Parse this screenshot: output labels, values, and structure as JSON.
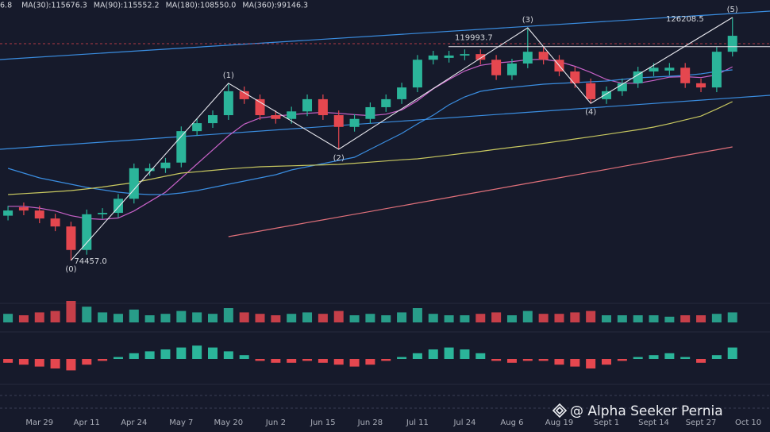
{
  "chart_data": {
    "type": "candlestick",
    "legend_fragment": "6.8",
    "legend_fragment_color": "#e8c840",
    "categories": [
      null,
      null,
      "Mar 29",
      null,
      null,
      "Apr 11",
      null,
      null,
      "Apr 24",
      null,
      null,
      "May 7",
      null,
      null,
      "May 20",
      null,
      null,
      "Jun 2",
      null,
      null,
      "Jun 15",
      null,
      null,
      "Jun 28",
      null,
      null,
      "Jul 11",
      null,
      null,
      "Jul 24",
      null,
      null,
      "Aug 6",
      null,
      null,
      "Aug 19",
      null,
      null,
      "Sept 1",
      null,
      null,
      "Sept 14",
      null,
      null,
      "Sept 27",
      null,
      null,
      "Oct 10"
    ],
    "open": [
      84000,
      85800,
      85100,
      83400,
      81700,
      76700,
      84300,
      84600,
      87600,
      93500,
      94100,
      95300,
      102000,
      103700,
      105400,
      110500,
      108800,
      105400,
      104600,
      106200,
      108800,
      105400,
      102900,
      104600,
      107100,
      108800,
      111300,
      117200,
      117600,
      118100,
      118400,
      117200,
      113900,
      116400,
      118900,
      117200,
      114700,
      112200,
      108800,
      110500,
      112200,
      114700,
      114900,
      115500,
      112200,
      111300,
      118900,
      null
    ],
    "high": [
      86100,
      86800,
      86100,
      84400,
      82700,
      85300,
      85600,
      88600,
      95100,
      95100,
      96300,
      103000,
      104700,
      106400,
      112200,
      111500,
      109800,
      106400,
      107200,
      109800,
      109800,
      106400,
      105600,
      108100,
      109800,
      112300,
      118200,
      119100,
      119100,
      119400,
      119400,
      118200,
      117400,
      124000,
      119900,
      118200,
      115700,
      113200,
      111500,
      113200,
      115700,
      116500,
      116500,
      116500,
      113200,
      119900,
      126208.5,
      null
    ],
    "low": [
      83000,
      84100,
      82400,
      80700,
      74457,
      75700,
      83300,
      83600,
      86600,
      92500,
      93100,
      94300,
      101000,
      102700,
      104400,
      107800,
      104400,
      103600,
      103600,
      105200,
      104400,
      98130,
      101900,
      103600,
      106100,
      107800,
      110300,
      116200,
      116600,
      117100,
      116200,
      112900,
      112900,
      115400,
      116200,
      113700,
      111200,
      107900,
      107800,
      109500,
      111200,
      113700,
      113900,
      111200,
      110300,
      110300,
      117900,
      null
    ],
    "close": [
      85100,
      85100,
      83400,
      81700,
      76700,
      84300,
      84600,
      87600,
      94100,
      94100,
      95300,
      102000,
      103700,
      105400,
      110500,
      108800,
      105400,
      104600,
      106200,
      108800,
      105400,
      102900,
      104600,
      107100,
      108800,
      111300,
      117200,
      118100,
      118100,
      118400,
      117200,
      113900,
      116400,
      118900,
      117200,
      114700,
      112200,
      108800,
      110500,
      112200,
      114700,
      115500,
      115500,
      112200,
      111300,
      118900,
      122300,
      null
    ],
    "up_color": "#2bb59a",
    "down_color": "#e5474f",
    "ylim": [
      65670,
      129920
    ],
    "series": [
      {
        "name": "MA(30):115676.3",
        "color": "#c862c8",
        "values": [
          86000,
          86000,
          85600,
          85000,
          84000,
          83400,
          83200,
          83500,
          85000,
          87000,
          89000,
          92000,
          95000,
          98000,
          101000,
          103500,
          104800,
          105200,
          105500,
          105800,
          106000,
          105800,
          105500,
          105300,
          105600,
          106500,
          108500,
          111000,
          113000,
          114800,
          116000,
          116500,
          116800,
          117200,
          117300,
          116800,
          115800,
          114500,
          113000,
          112200,
          112200,
          112800,
          113500,
          113600,
          113400,
          114000,
          115700,
          null
        ]
      },
      {
        "name": "MA(90):115552.2",
        "color": "#3a8de0",
        "values": [
          94070,
          93060,
          92040,
          91370,
          90690,
          90010,
          89510,
          89000,
          88660,
          88490,
          88490,
          88830,
          89340,
          90010,
          90690,
          91370,
          92040,
          92720,
          93730,
          94410,
          95090,
          95760,
          96440,
          98130,
          99820,
          101510,
          103540,
          105400,
          107600,
          109290,
          110480,
          110980,
          111320,
          111660,
          112000,
          112170,
          112340,
          112500,
          112670,
          113010,
          113350,
          113520,
          113690,
          113860,
          114200,
          114700,
          115040,
          null
        ]
      },
      {
        "name": "MA(180):108550.0",
        "color": "#c8c860",
        "values": [
          88490,
          88700,
          88900,
          89100,
          89340,
          89700,
          90100,
          90600,
          91030,
          91700,
          92400,
          93060,
          93350,
          93650,
          93950,
          94200,
          94410,
          94520,
          94620,
          94720,
          94820,
          94920,
          95150,
          95400,
          95650,
          95900,
          96100,
          96500,
          96900,
          97300,
          97700,
          98130,
          98550,
          98950,
          99400,
          99850,
          100330,
          100800,
          101300,
          101800,
          102300,
          102870,
          103600,
          104400,
          105200,
          106700,
          108280,
          null
        ]
      },
      {
        "name": "MA(360):99146.3",
        "color": "#e0707a",
        "values": [
          null,
          null,
          null,
          null,
          null,
          null,
          null,
          null,
          null,
          null,
          null,
          null,
          null,
          null,
          79530,
          80130,
          80720,
          81320,
          81920,
          82520,
          83110,
          83710,
          84310,
          84900,
          85500,
          86100,
          86700,
          87290,
          87890,
          88490,
          89080,
          89680,
          90280,
          90880,
          91470,
          92070,
          92670,
          93260,
          93860,
          94460,
          95060,
          95650,
          96250,
          96850,
          97440,
          98040,
          98640,
          null
        ]
      }
    ],
    "waves": [
      {
        "label": "(0)",
        "candle": 4,
        "value": 74457
      },
      {
        "label": "(1)",
        "candle": 14,
        "value": 112200
      },
      {
        "label": "(2)",
        "candle": 21,
        "value": 98130
      },
      {
        "label": "(3)",
        "candle": 33,
        "value": 124000
      },
      {
        "label": "(4)",
        "candle": 37,
        "value": 107900
      },
      {
        "label": "(5)",
        "candle": 46,
        "value": 126208.5
      }
    ],
    "price_labels": [
      {
        "value": 74457,
        "label": "74457.0"
      },
      {
        "value": 119993.7,
        "label": "119993.7"
      },
      {
        "value": 126208.5,
        "label": "126208.5"
      }
    ],
    "volume": {
      "ylim": [
        0,
        40
      ],
      "values": [
        12,
        10,
        14,
        16,
        30,
        22,
        14,
        12,
        18,
        10,
        12,
        16,
        14,
        12,
        20,
        14,
        12,
        10,
        12,
        14,
        12,
        16,
        10,
        12,
        10,
        14,
        20,
        12,
        10,
        10,
        12,
        14,
        10,
        16,
        12,
        12,
        14,
        16,
        10,
        10,
        10,
        10,
        8,
        10,
        10,
        12,
        14,
        null
      ]
    },
    "macd": {
      "ylim": [
        -20,
        20
      ],
      "values": [
        -4,
        -6,
        -8,
        -10,
        -12,
        -6,
        -2,
        2,
        6,
        8,
        10,
        12,
        14,
        12,
        8,
        4,
        -2,
        -4,
        -4,
        -2,
        -4,
        -6,
        -8,
        -6,
        -2,
        2,
        6,
        10,
        12,
        10,
        6,
        -2,
        -4,
        -2,
        -2,
        -6,
        -8,
        -10,
        -6,
        -2,
        2,
        4,
        6,
        2,
        -4,
        4,
        12,
        null
      ]
    },
    "watermark": "@ Alpha Seeker Pernia"
  }
}
